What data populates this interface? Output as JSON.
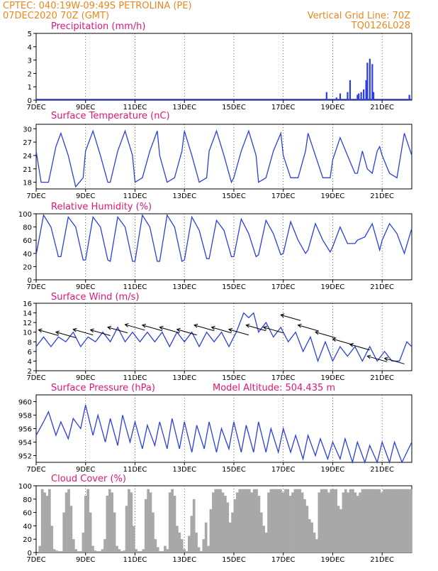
{
  "header": {
    "line1": "CPTEC:   040:19W-09:49S   PETROLINA (PE)",
    "line2": "07DEC2020 70Z (GMT)",
    "right1": "Vertical Grid Line: 70Z",
    "right2": "TQ0126L028"
  },
  "colors": {
    "header": "#e8871e",
    "title": "#e0167a",
    "line": "#2b3fe0",
    "cloud": "#a8a8a8",
    "grid": "#000000"
  },
  "x_ticks": [
    "7DEC",
    "9DEC",
    "11DEC",
    "13DEC",
    "15DEC",
    "17DEC",
    "19DEC",
    "21DEC"
  ],
  "chart_data": [
    {
      "type": "bar",
      "title": "Precipitation (mm/h)",
      "ylim": [
        0,
        5
      ],
      "yticks": [
        0,
        1,
        2,
        3,
        4,
        5
      ],
      "x_range_days": [
        7,
        22.2
      ],
      "x": [
        18.7,
        18.75,
        19.15,
        19.3,
        19.6,
        19.7,
        20.0,
        20.05,
        20.15,
        20.25,
        20.35,
        20.4,
        20.5,
        20.6,
        20.65,
        22.1
      ],
      "values": [
        0.1,
        0.6,
        0.2,
        0.5,
        0.6,
        1.5,
        0.4,
        0.5,
        0.6,
        0.8,
        1.5,
        2.8,
        3.1,
        2.7,
        0.6,
        0.4
      ]
    },
    {
      "type": "line",
      "title": "Surface Temperature (nC)",
      "ylim": [
        16.5,
        31
      ],
      "yticks": [
        18,
        21,
        24,
        27,
        30
      ],
      "x_range_days": [
        7,
        22.2
      ],
      "x": [
        7.0,
        7.2,
        7.5,
        7.8,
        8.0,
        8.3,
        8.6,
        8.9,
        9.0,
        9.3,
        9.6,
        9.9,
        10.0,
        10.3,
        10.6,
        10.9,
        11.0,
        11.3,
        11.6,
        11.9,
        12.0,
        12.3,
        12.6,
        12.9,
        13.0,
        13.3,
        13.6,
        13.9,
        14.0,
        14.3,
        14.6,
        14.9,
        15.0,
        15.3,
        15.6,
        15.9,
        16.0,
        16.3,
        16.6,
        16.9,
        17.0,
        17.3,
        17.6,
        17.9,
        18.0,
        18.3,
        18.6,
        18.9,
        19.0,
        19.3,
        19.6,
        19.9,
        20.0,
        20.2,
        20.4,
        20.6,
        20.8,
        20.9,
        21.0,
        21.3,
        21.6,
        21.9,
        22.2
      ],
      "values": [
        25,
        18,
        18,
        26,
        29,
        24,
        17,
        19,
        25,
        29.5,
        24,
        18,
        18,
        25,
        29.5,
        24,
        18,
        19,
        25,
        29.5,
        24,
        18,
        19,
        25,
        29.5,
        24,
        18,
        19,
        25,
        29.5,
        24,
        18,
        19,
        25,
        29.5,
        24,
        18,
        19,
        25,
        29,
        24,
        19,
        19,
        25,
        29,
        24,
        19,
        19,
        23,
        28,
        24,
        20,
        20,
        25,
        21,
        20,
        25,
        26,
        24,
        20,
        19,
        29,
        24
      ]
    },
    {
      "type": "line",
      "title": "Relative Humidity (%)",
      "ylim": [
        0,
        100
      ],
      "yticks": [
        0,
        20,
        40,
        60,
        80,
        100
      ],
      "x_range_days": [
        7,
        22.2
      ],
      "x": [
        7.0,
        7.3,
        7.6,
        7.9,
        8.0,
        8.3,
        8.6,
        8.9,
        9.0,
        9.3,
        9.6,
        9.9,
        10.0,
        10.3,
        10.6,
        10.9,
        11.0,
        11.3,
        11.6,
        11.9,
        12.0,
        12.3,
        12.6,
        12.9,
        13.0,
        13.3,
        13.6,
        13.9,
        14.0,
        14.3,
        14.6,
        14.9,
        15.0,
        15.3,
        15.6,
        15.9,
        16.0,
        16.3,
        16.6,
        16.9,
        17.0,
        17.3,
        17.6,
        17.9,
        18.0,
        18.3,
        18.6,
        18.9,
        19.0,
        19.3,
        19.6,
        19.9,
        20.0,
        20.3,
        20.6,
        20.9,
        21.0,
        21.3,
        21.6,
        21.9,
        22.2
      ],
      "values": [
        38,
        98,
        80,
        35,
        35,
        95,
        80,
        30,
        30,
        95,
        80,
        30,
        28,
        95,
        80,
        28,
        28,
        98,
        80,
        28,
        28,
        98,
        80,
        28,
        30,
        95,
        75,
        32,
        32,
        90,
        75,
        35,
        35,
        92,
        70,
        35,
        38,
        90,
        70,
        38,
        40,
        88,
        60,
        40,
        45,
        85,
        60,
        42,
        50,
        80,
        55,
        55,
        60,
        65,
        85,
        45,
        60,
        85,
        70,
        40,
        78
      ]
    },
    {
      "type": "line",
      "title": "Surface Wind (m/s)",
      "ylim": [
        2,
        16
      ],
      "yticks": [
        2,
        4,
        6,
        8,
        10,
        12,
        14,
        16
      ],
      "x_range_days": [
        7,
        22.2
      ],
      "x": [
        7.0,
        7.3,
        7.6,
        7.9,
        8.2,
        8.5,
        8.8,
        9.1,
        9.4,
        9.7,
        10.0,
        10.3,
        10.6,
        10.9,
        11.2,
        11.5,
        11.8,
        12.1,
        12.4,
        12.7,
        13.0,
        13.3,
        13.6,
        13.9,
        14.2,
        14.5,
        14.8,
        15.1,
        15.4,
        15.6,
        15.8,
        16.0,
        16.3,
        16.6,
        16.9,
        17.2,
        17.5,
        17.8,
        18.1,
        18.4,
        18.7,
        19.0,
        19.3,
        19.6,
        19.9,
        20.2,
        20.5,
        20.8,
        21.1,
        21.4,
        21.7,
        22.0,
        22.2
      ],
      "values": [
        7,
        9,
        7,
        9,
        8,
        10,
        7,
        9,
        8,
        10,
        8,
        11,
        8,
        10,
        8,
        10,
        8,
        10,
        7,
        10,
        8,
        10,
        7,
        10,
        8,
        10,
        7,
        10,
        14,
        13,
        14,
        10,
        12,
        9,
        11,
        8,
        10,
        6,
        9,
        4,
        8,
        4,
        7,
        5,
        7,
        4,
        7,
        4,
        6,
        4,
        4,
        8,
        7
      ],
      "wind_barbs_x": [
        7.5,
        8.2,
        8.9,
        9.6,
        10.3,
        11.0,
        11.7,
        12.4,
        13.1,
        13.8,
        14.5,
        15.2,
        15.9,
        16.6,
        17.3,
        18.0,
        18.7,
        19.4,
        20.1,
        20.8,
        21.5
      ]
    },
    {
      "type": "line",
      "title": "Surface Pressure (hPa)",
      "subtitle": "Model Altitude: 504.435 m",
      "ylim": [
        951,
        961
      ],
      "yticks": [
        952,
        954,
        956,
        958,
        960
      ],
      "x_range_days": [
        7,
        22.2
      ],
      "x": [
        7.0,
        7.3,
        7.5,
        7.8,
        8.0,
        8.3,
        8.5,
        8.8,
        9.0,
        9.3,
        9.5,
        9.8,
        10.0,
        10.3,
        10.5,
        10.8,
        11.0,
        11.3,
        11.5,
        11.8,
        12.0,
        12.3,
        12.5,
        12.8,
        13.0,
        13.3,
        13.5,
        13.8,
        14.0,
        14.3,
        14.5,
        14.8,
        15.0,
        15.3,
        15.5,
        15.8,
        16.0,
        16.3,
        16.5,
        16.8,
        17.0,
        17.3,
        17.5,
        17.8,
        18.0,
        18.3,
        18.5,
        18.8,
        19.0,
        19.3,
        19.5,
        19.8,
        20.0,
        20.3,
        20.5,
        20.8,
        21.0,
        21.3,
        21.5,
        21.8,
        22.2
      ],
      "values": [
        955,
        957,
        958.5,
        955,
        957,
        954.5,
        957.5,
        956,
        959.5,
        955,
        958,
        954,
        957.5,
        953.5,
        958,
        954,
        957,
        953,
        956.5,
        953.5,
        957,
        953,
        957.5,
        953,
        957,
        952.5,
        956.5,
        953,
        957,
        952.5,
        956,
        953,
        957,
        952.5,
        956.5,
        952.5,
        957,
        952.5,
        956,
        952.5,
        956,
        952.5,
        955,
        951.5,
        955,
        952,
        954.5,
        951.5,
        954,
        951.5,
        954.5,
        951,
        954,
        951,
        953.5,
        951,
        954,
        951,
        954,
        951,
        954
      ]
    },
    {
      "type": "bar",
      "title": "Cloud Cover (%)",
      "ylim": [
        0,
        100
      ],
      "yticks": [
        0,
        20,
        40,
        60,
        80,
        100
      ],
      "x_range_days": [
        7,
        22.2
      ],
      "values": [
        0,
        10,
        95,
        90,
        85,
        95,
        40,
        5,
        3,
        2,
        2,
        60,
        90,
        95,
        70,
        20,
        5,
        2,
        2,
        30,
        85,
        95,
        60,
        10,
        3,
        2,
        2,
        5,
        20,
        85,
        95,
        90,
        60,
        10,
        5,
        2,
        3,
        70,
        95,
        90,
        40,
        5,
        2,
        2,
        5,
        80,
        95,
        90,
        60,
        20,
        8,
        2,
        2,
        10,
        5,
        90,
        95,
        85,
        40,
        30,
        20,
        5,
        2,
        25,
        55,
        80,
        30,
        8,
        2,
        20,
        45,
        10,
        65,
        90,
        95,
        95,
        95,
        90,
        85,
        75,
        45,
        60,
        80,
        90,
        95,
        95,
        95,
        95,
        95,
        90,
        95,
        95,
        85,
        60,
        40,
        30,
        90,
        95,
        95,
        95,
        95,
        95,
        90,
        95,
        95,
        85,
        90,
        95,
        95,
        95,
        90,
        80,
        70,
        50,
        45,
        30,
        20,
        90,
        95,
        95,
        95,
        90,
        95,
        95,
        95,
        70,
        65,
        90,
        95,
        90,
        95,
        95,
        90,
        85,
        90,
        95,
        95,
        95,
        95,
        95,
        95,
        95,
        95,
        90,
        95,
        95,
        95,
        95,
        95,
        95,
        95,
        95,
        95,
        95,
        95,
        95
      ]
    }
  ]
}
